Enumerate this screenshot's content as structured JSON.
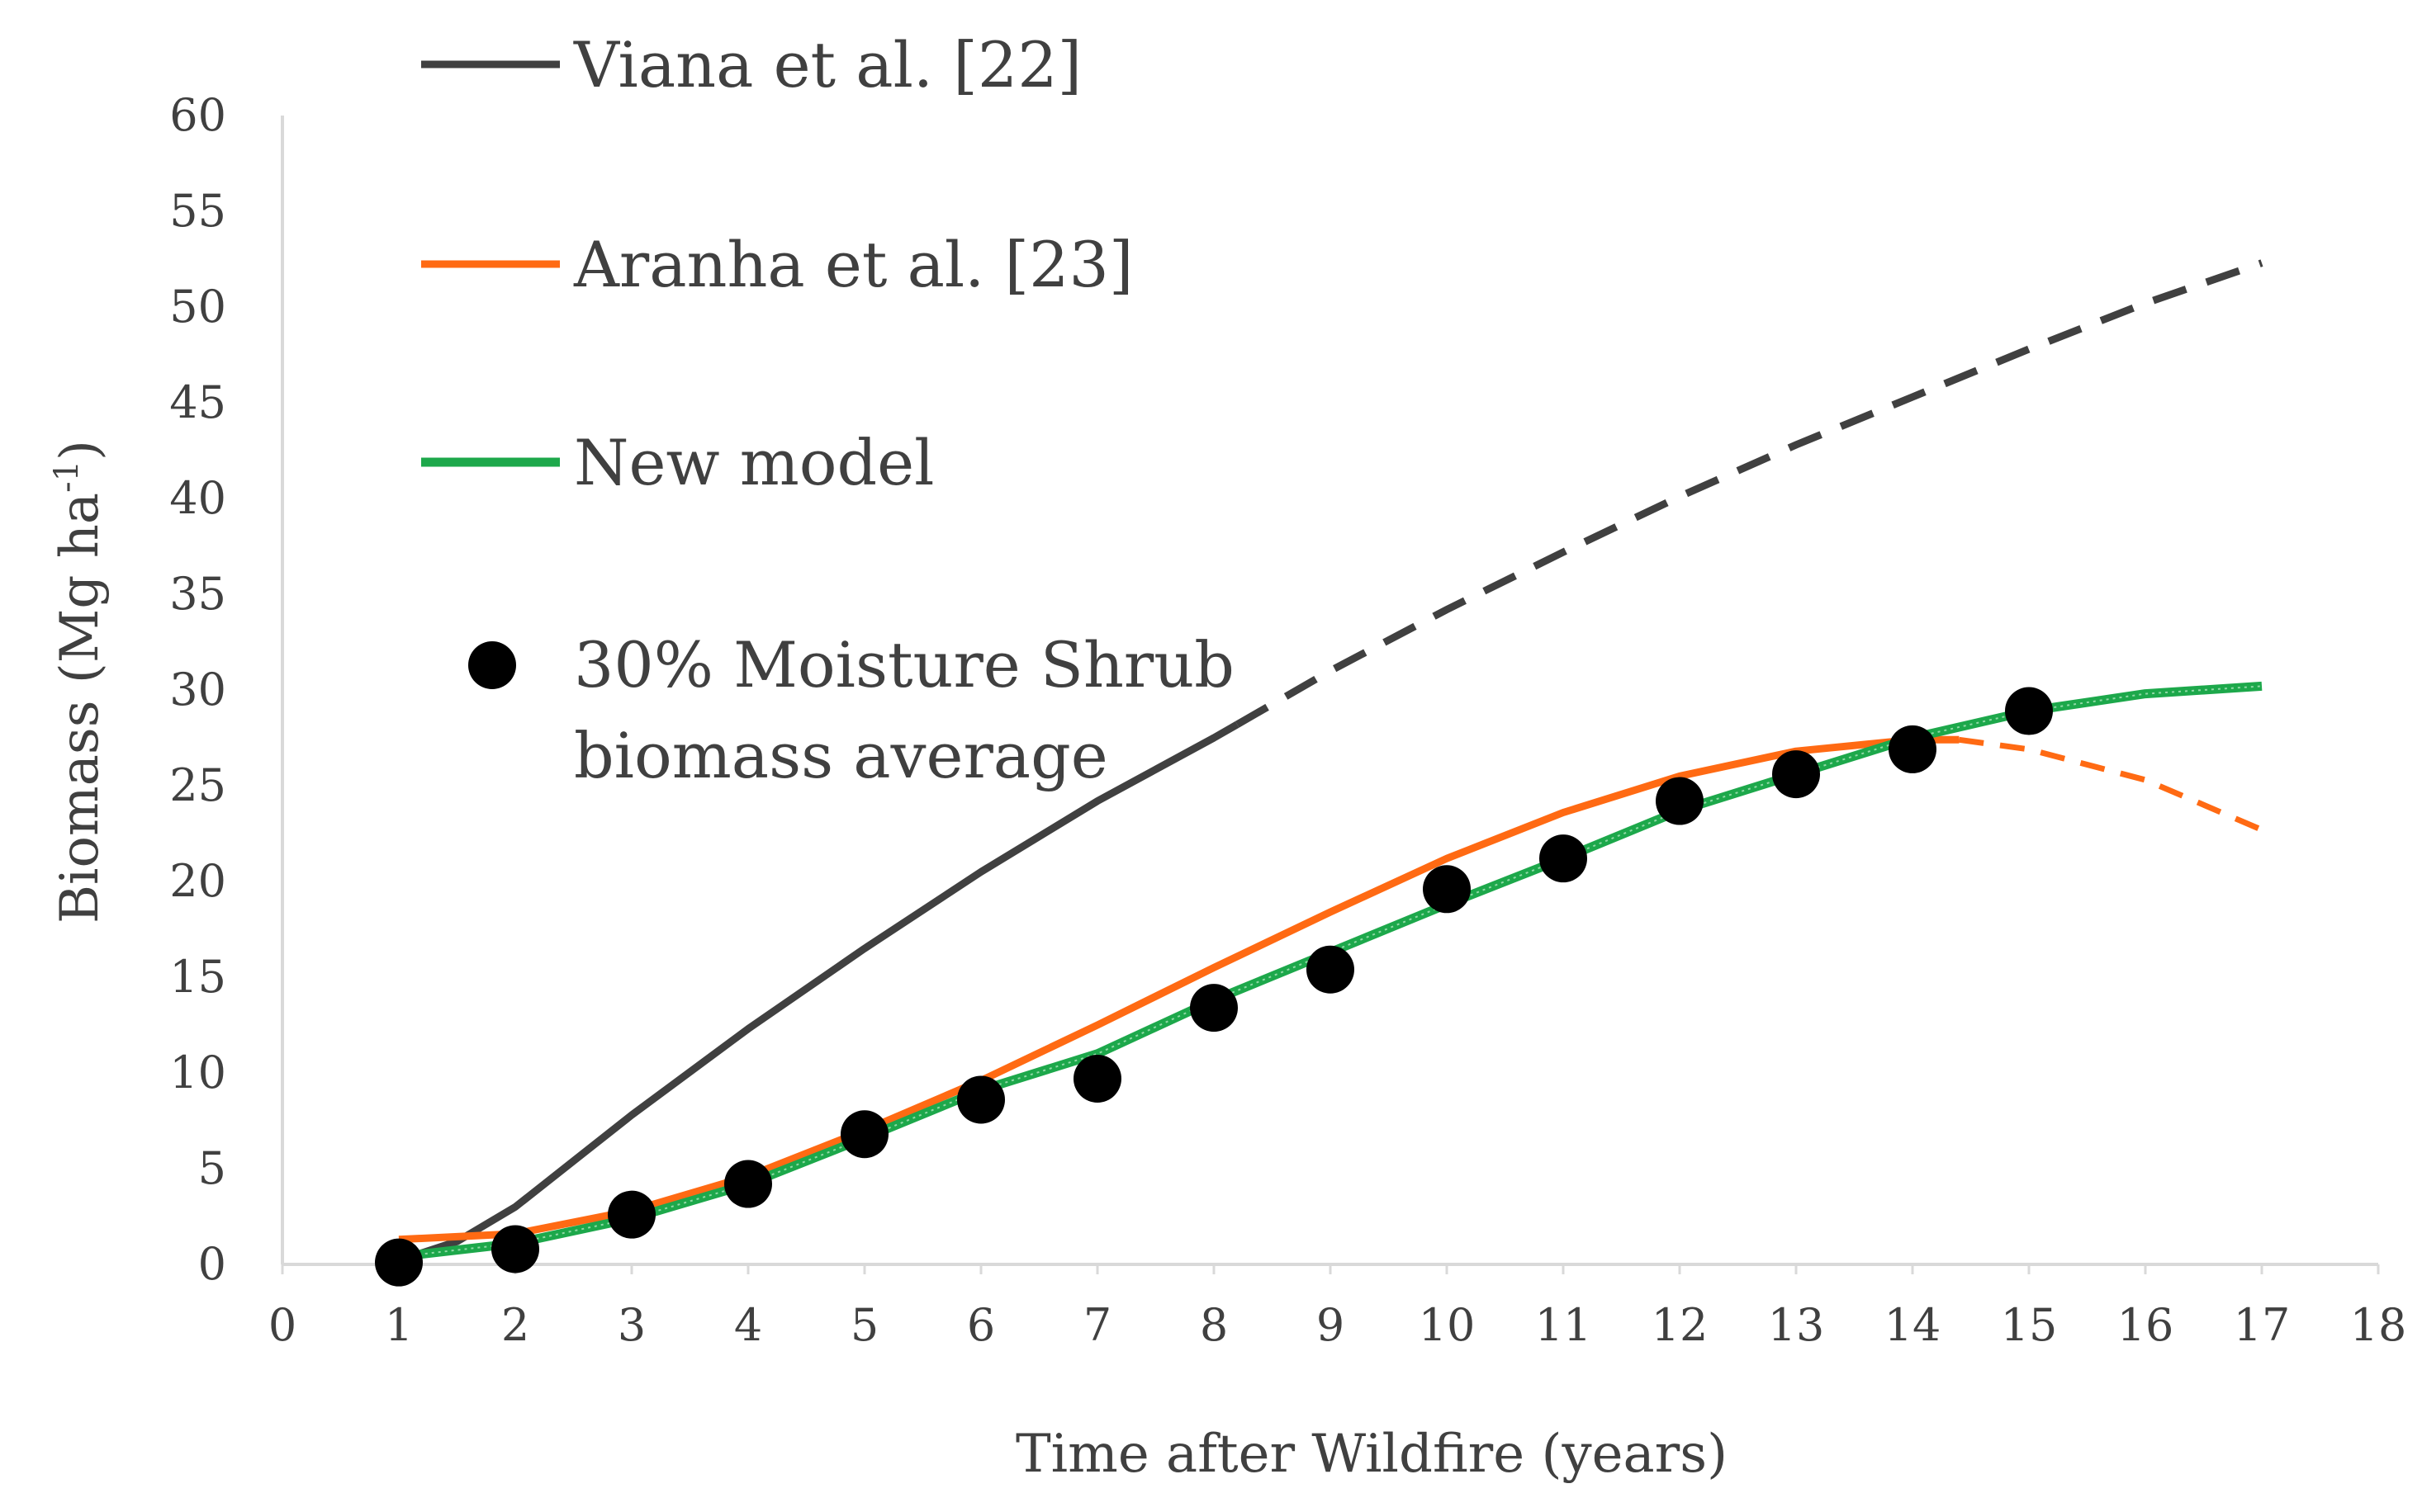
{
  "chart_data": {
    "type": "line",
    "title": "",
    "xlabel": "Time after Wildfire (years)",
    "ylabel_main": "Biomass (Mg ha",
    "ylabel_sup": "-1",
    "ylabel_close": ")",
    "xlim": [
      0,
      18
    ],
    "ylim": [
      0,
      60
    ],
    "xticks": [
      "0",
      "1",
      "2",
      "3",
      "4",
      "5",
      "6",
      "7",
      "8",
      "9",
      "10",
      "11",
      "12",
      "13",
      "14",
      "15",
      "16",
      "17",
      "18"
    ],
    "yticks": [
      "0",
      "5",
      "10",
      "15",
      "20",
      "25",
      "30",
      "35",
      "40",
      "45",
      "50",
      "55",
      "60"
    ],
    "grid": false,
    "legend_position": "top-left",
    "series": [
      {
        "name": "Viana et al. [22]",
        "color": "#404040",
        "style": "solid then dashed",
        "solid_points": [
          [
            1,
            0.2
          ],
          [
            1.5,
            1.2
          ],
          [
            2,
            3.0
          ],
          [
            3,
            7.8
          ],
          [
            4,
            12.3
          ],
          [
            5,
            16.5
          ],
          [
            6,
            20.5
          ],
          [
            7,
            24.2
          ],
          [
            8,
            27.5
          ],
          [
            8.2,
            28.2
          ]
        ],
        "dashed_points": [
          [
            8.2,
            28.2
          ],
          [
            9,
            31.0
          ],
          [
            10,
            34.2
          ],
          [
            11,
            37.2
          ],
          [
            12,
            40.1
          ],
          [
            13,
            42.8
          ],
          [
            14,
            45.3
          ],
          [
            15,
            47.8
          ],
          [
            16,
            50.2
          ],
          [
            17,
            52.3
          ]
        ]
      },
      {
        "name": "Aranha et al. [23]",
        "color": "#FF6A13",
        "style": "solid then dashed",
        "solid_points": [
          [
            1,
            1.3
          ],
          [
            2,
            1.6
          ],
          [
            3,
            2.8
          ],
          [
            4,
            4.6
          ],
          [
            5,
            7.0
          ],
          [
            6,
            9.6
          ],
          [
            7,
            12.5
          ],
          [
            8,
            15.5
          ],
          [
            9,
            18.4
          ],
          [
            10,
            21.2
          ],
          [
            11,
            23.6
          ],
          [
            12,
            25.5
          ],
          [
            13,
            26.8
          ],
          [
            14,
            27.4
          ],
          [
            14.4,
            27.4
          ]
        ],
        "dashed_points": [
          [
            14.4,
            27.4
          ],
          [
            15,
            26.9
          ],
          [
            16,
            25.3
          ],
          [
            17,
            22.7
          ]
        ]
      },
      {
        "name": "New model",
        "color": "#1DA84B",
        "style": "solid",
        "points": [
          [
            1,
            0.4
          ],
          [
            2,
            1.1
          ],
          [
            3,
            2.4
          ],
          [
            4,
            4.2
          ],
          [
            5,
            6.6
          ],
          [
            6,
            9.1
          ],
          [
            7,
            11.0
          ],
          [
            8,
            13.8
          ],
          [
            9,
            16.3
          ],
          [
            10,
            18.8
          ],
          [
            11,
            21.2
          ],
          [
            12,
            23.7
          ],
          [
            13,
            25.6
          ],
          [
            14,
            27.5
          ],
          [
            15,
            28.9
          ],
          [
            16,
            29.8
          ],
          [
            17,
            30.2
          ]
        ]
      },
      {
        "name": "30% Moisture Shrub biomass average",
        "legend_lines": [
          "30% Moisture Shrub",
          "biomass average"
        ],
        "color": "#000000",
        "style": "markers",
        "points": [
          [
            1,
            0.1
          ],
          [
            2,
            0.8
          ],
          [
            3,
            2.6
          ],
          [
            4,
            4.2
          ],
          [
            5,
            6.8
          ],
          [
            6,
            8.6
          ],
          [
            7,
            9.7
          ],
          [
            8,
            13.4
          ],
          [
            9,
            15.4
          ],
          [
            10,
            19.6
          ],
          [
            11,
            21.2
          ],
          [
            12,
            24.2
          ],
          [
            13,
            25.6
          ],
          [
            14,
            26.9
          ],
          [
            15,
            28.9
          ]
        ]
      }
    ]
  }
}
